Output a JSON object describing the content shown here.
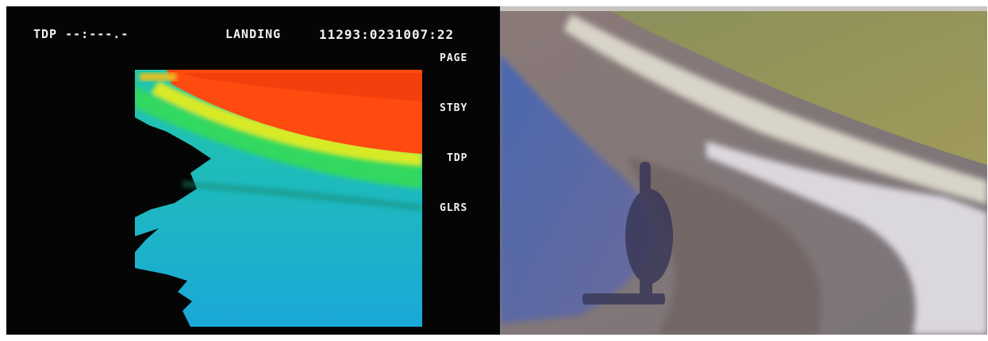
{
  "display": {
    "tdp_status": "TDP --:---.-",
    "mode": "LANDING",
    "timestamp": "11293:0231007:22",
    "softkeys": [
      {
        "label": "PAGE"
      },
      {
        "label": "STBY"
      },
      {
        "label": "TDP"
      },
      {
        "label": "GLRS"
      }
    ]
  },
  "colors": {
    "high": "#ff4a10",
    "mid_high": "#e8ee20",
    "mid": "#30e050",
    "low": "#20d0b0",
    "lowest": "#20a0e8",
    "background": "#050505"
  },
  "camera": {
    "icon": "landing-camera-view"
  }
}
